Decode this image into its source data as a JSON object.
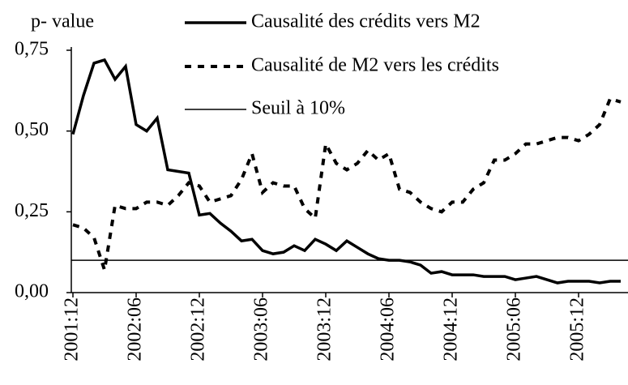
{
  "chart_data": {
    "type": "line",
    "ylabel": "p- value",
    "categories": [
      "2001:12",
      null,
      null,
      null,
      null,
      null,
      "2002:06",
      null,
      null,
      null,
      null,
      null,
      "2002:12",
      null,
      null,
      null,
      null,
      null,
      "2003:06",
      null,
      null,
      null,
      null,
      null,
      "2003:12",
      null,
      null,
      null,
      null,
      null,
      "2004:06",
      null,
      null,
      null,
      null,
      null,
      "2004:12",
      null,
      null,
      null,
      null,
      null,
      "2005:06",
      null,
      null,
      null,
      null,
      null,
      "2005:12",
      null,
      null,
      null,
      null
    ],
    "series": [
      {
        "name": "Causalité des crédits vers M2",
        "color": "#000000",
        "style": "solid",
        "values": [
          0.49,
          0.61,
          0.71,
          0.72,
          0.66,
          0.7,
          0.52,
          0.5,
          0.54,
          0.38,
          0.375,
          0.37,
          0.24,
          0.245,
          0.215,
          0.19,
          0.16,
          0.165,
          0.13,
          0.12,
          0.125,
          0.145,
          0.13,
          0.165,
          0.15,
          0.13,
          0.16,
          0.14,
          0.12,
          0.105,
          0.1,
          0.1,
          0.095,
          0.085,
          0.06,
          0.065,
          0.055,
          0.055,
          0.055,
          0.05,
          0.05,
          0.05,
          0.04,
          0.045,
          0.05,
          0.04,
          0.03,
          0.035,
          0.035,
          0.035,
          0.03,
          0.035,
          0.035
        ]
      },
      {
        "name": "Causalité de M2 vers les crédits",
        "color": "#000000",
        "style": "dashed",
        "values": [
          0.21,
          0.2,
          0.17,
          0.07,
          0.27,
          0.26,
          0.26,
          0.28,
          0.28,
          0.27,
          0.3,
          0.34,
          0.33,
          0.28,
          0.29,
          0.3,
          0.35,
          0.43,
          0.31,
          0.34,
          0.33,
          0.33,
          0.26,
          0.23,
          0.46,
          0.4,
          0.38,
          0.4,
          0.44,
          0.41,
          0.43,
          0.32,
          0.31,
          0.28,
          0.26,
          0.25,
          0.28,
          0.28,
          0.32,
          0.34,
          0.41,
          0.41,
          0.43,
          0.46,
          0.46,
          0.47,
          0.48,
          0.48,
          0.47,
          0.49,
          0.52,
          0.6,
          0.59
        ]
      }
    ],
    "threshold": {
      "name": "Seuil à 10%",
      "value": 0.1,
      "color": "#000000"
    },
    "ylim": [
      0,
      0.75
    ],
    "yticks": [
      {
        "value": 0,
        "label": "0,00"
      },
      {
        "value": 0.25,
        "label": "0,25"
      },
      {
        "value": 0.5,
        "label": "0,50"
      },
      {
        "value": 0.75,
        "label": "0,75"
      }
    ]
  }
}
